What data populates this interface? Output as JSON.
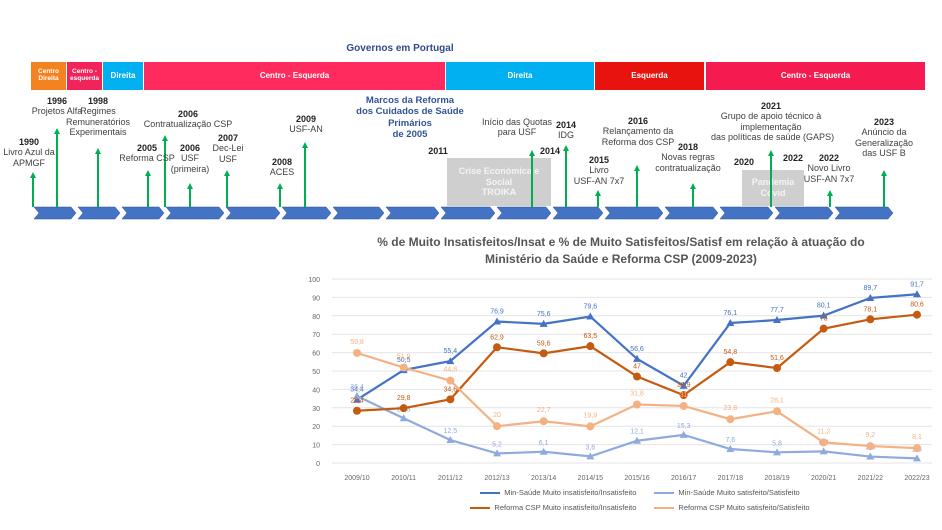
{
  "governments": {
    "title": "Governos em Portugal",
    "periods": [
      {
        "label": "Centro Direita",
        "color": "#f58220"
      },
      {
        "label": "Centro - esquerda",
        "color": "#f0235a"
      },
      {
        "label": "Direita",
        "color": "#00b0f0"
      },
      {
        "label": "Centro - Esquerda",
        "color": "#ff2b5e"
      },
      {
        "label": "Direita",
        "color": "#00b0f0"
      },
      {
        "label": "Esquerda",
        "color": "#e8130f"
      },
      {
        "label": "Centro - Esquerda",
        "color": "#f51a4f"
      }
    ]
  },
  "timeline": {
    "title_lines": [
      "Marcos da Reforma",
      "dos Cuidados de Saúde Primários",
      "de 2005"
    ],
    "milestones": [
      {
        "year": "1990",
        "lines": [
          "Livro Azul da",
          "APMGF"
        ]
      },
      {
        "year": "1996",
        "lines": [
          "Projetos Alfa"
        ]
      },
      {
        "year": "1998",
        "lines": [
          "Regimes",
          "Remuneratórios",
          "Experimentais"
        ]
      },
      {
        "year": "2005",
        "lines": [
          "Reforma CSP"
        ]
      },
      {
        "year": "2006",
        "lines": [
          "Contratualização CSP"
        ]
      },
      {
        "year": "2006",
        "lines": [
          "USF",
          "(primeira)"
        ]
      },
      {
        "year": "2007",
        "lines": [
          "Dec-Lei",
          "USF"
        ]
      },
      {
        "year": "2008",
        "lines": [
          "ACES"
        ]
      },
      {
        "year": "2009",
        "lines": [
          "USF-AN"
        ]
      },
      {
        "year": "2011",
        "lines": []
      },
      {
        "year": "",
        "lines": [
          "Início das Quotas",
          "para USF"
        ]
      },
      {
        "year": "2014",
        "lines": []
      },
      {
        "year": "2014",
        "lines": [
          "IDG"
        ]
      },
      {
        "year": "2015",
        "lines": [
          "Livro",
          "USF-AN 7x7"
        ]
      },
      {
        "year": "2016",
        "lines": [
          "Relançamento da",
          "Reforma dos CSP"
        ]
      },
      {
        "year": "2018",
        "lines": [
          "Novas regras",
          "contratualização"
        ]
      },
      {
        "year": "2020",
        "lines": []
      },
      {
        "year": "2021",
        "lines": [
          "Grupo de apoio técnico à",
          "implementação",
          "das políticas de saúde (GAPS)"
        ]
      },
      {
        "year": "2022",
        "lines": []
      },
      {
        "year": "2022",
        "lines": [
          "Novo Livro",
          "USF-AN 7x7"
        ]
      },
      {
        "year": "2023",
        "lines": [
          "Anúncio da",
          "Generalização",
          "das USF B"
        ]
      }
    ],
    "crises": [
      {
        "lines": [
          "Crise Económica e",
          "Social",
          "TROIKA"
        ]
      },
      {
        "lines": [
          "Pandemia",
          "Covid"
        ]
      }
    ]
  },
  "chart_data": {
    "type": "line",
    "title": "% de Muito Insatisfeitos/Insat  e % de Muito Satisfeitos/Satisf em relação à atuação do Ministério da Saúde e Reforma CSP (2009-2023)",
    "title_lines": [
      "% de Muito Insatisfeitos/Insat  e % de Muito Satisfeitos/Satisf em relação à atuação do",
      "Ministério da Saúde e Reforma CSP (2009-2023)"
    ],
    "categories": [
      "2009/10",
      "2010/11",
      "2011/12",
      "2012/13",
      "2013/14",
      "2014/15",
      "2015/16",
      "2016/17",
      "2017/18",
      "2018/19",
      "2020/21",
      "2021/22",
      "2022/23"
    ],
    "ylim": [
      0,
      100
    ],
    "yticks": [
      0,
      10,
      20,
      30,
      40,
      50,
      60,
      70,
      80,
      90,
      100
    ],
    "grid": true,
    "legend_position": "bottom",
    "series": [
      {
        "name": "Min-Saúde Muito insatisfeito/Insatisfeito",
        "color": "#4472c4",
        "marker": "triangle",
        "values": [
          34.4,
          50.5,
          55.4,
          76.9,
          75.6,
          79.6,
          56.6,
          42,
          76.1,
          77.7,
          80.1,
          89.7,
          91.7
        ],
        "labels": [
          "34,4",
          "50,5",
          "55,4",
          "76,9",
          "75,6",
          "79,6",
          "56,6",
          "42",
          "76,1",
          "77,7",
          "80,1",
          "89,7",
          "91,7"
        ]
      },
      {
        "name": "Min-Saúde Muito satisfeito/Satisfeito",
        "color": "#8faadc",
        "marker": "triangle",
        "values": [
          36.4,
          24.3,
          12.5,
          5.2,
          6.1,
          3.6,
          12.1,
          15.3,
          7.6,
          5.8,
          6.3,
          3.5,
          2.5
        ],
        "labels": [
          "36,4",
          "24,3",
          "12,5",
          "5,2",
          "6,1",
          "3,6",
          "12,1",
          "15,3",
          "7,6",
          "5,8",
          "6,3",
          "3,5",
          "2,5"
        ]
      },
      {
        "name": "Reforma CSP Muito insatisfeito/Insatisfeito",
        "color": "#c55a11",
        "marker": "circle",
        "values": [
          28.4,
          29.8,
          34.6,
          62.9,
          59.6,
          63.5,
          47,
          36.9,
          54.8,
          51.6,
          73,
          78.1,
          80.6
        ],
        "labels": [
          "28,4",
          "29,8",
          "34,6",
          "62,9",
          "59,6",
          "63,5",
          "47",
          "36,9",
          "54,8",
          "51,6",
          "73",
          "78,1",
          "80,6"
        ]
      },
      {
        "name": "Reforma CSP Muito satisfeito/Satisfeito",
        "color": "#f4b183",
        "marker": "circle",
        "values": [
          59.8,
          51.9,
          44.8,
          20,
          22.7,
          19.9,
          31.8,
          31,
          23.8,
          28.1,
          11.2,
          9.2,
          8.1
        ],
        "labels": [
          "59,8",
          "51,9",
          "44,8",
          "20",
          "22,7",
          "19,9",
          "31,8",
          "31",
          "23,8",
          "28,1",
          "11,2",
          "9,2",
          "8,1"
        ]
      }
    ]
  }
}
